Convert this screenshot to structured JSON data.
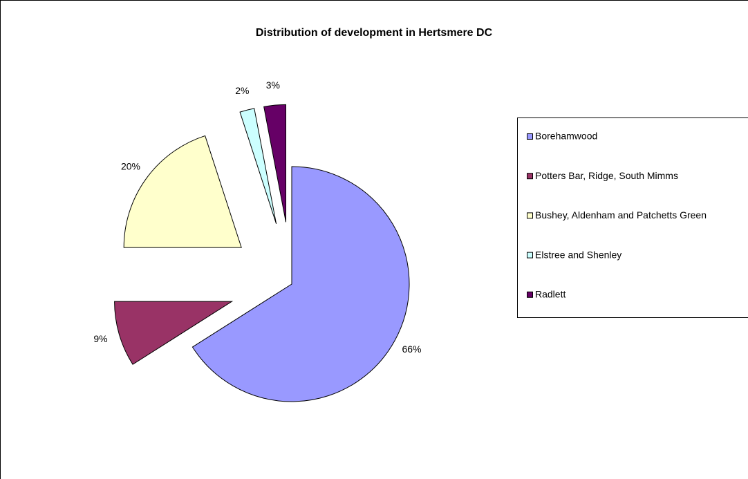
{
  "chart_data": {
    "type": "pie",
    "title": "Distribution of development in Hertsmere DC",
    "categories": [
      "Borehamwood",
      "Potters Bar, Ridge, South Mimms",
      "Bushey, Aldenham and Patchetts Green",
      "Elstree and Shenley",
      "Radlett"
    ],
    "values": [
      66,
      9,
      20,
      2,
      3
    ],
    "value_labels": [
      "66%",
      "9%",
      "20%",
      "2%",
      "3%"
    ],
    "colors": [
      "#9999ff",
      "#993366",
      "#ffffcc",
      "#ccffff",
      "#660066"
    ],
    "legend": "right"
  }
}
